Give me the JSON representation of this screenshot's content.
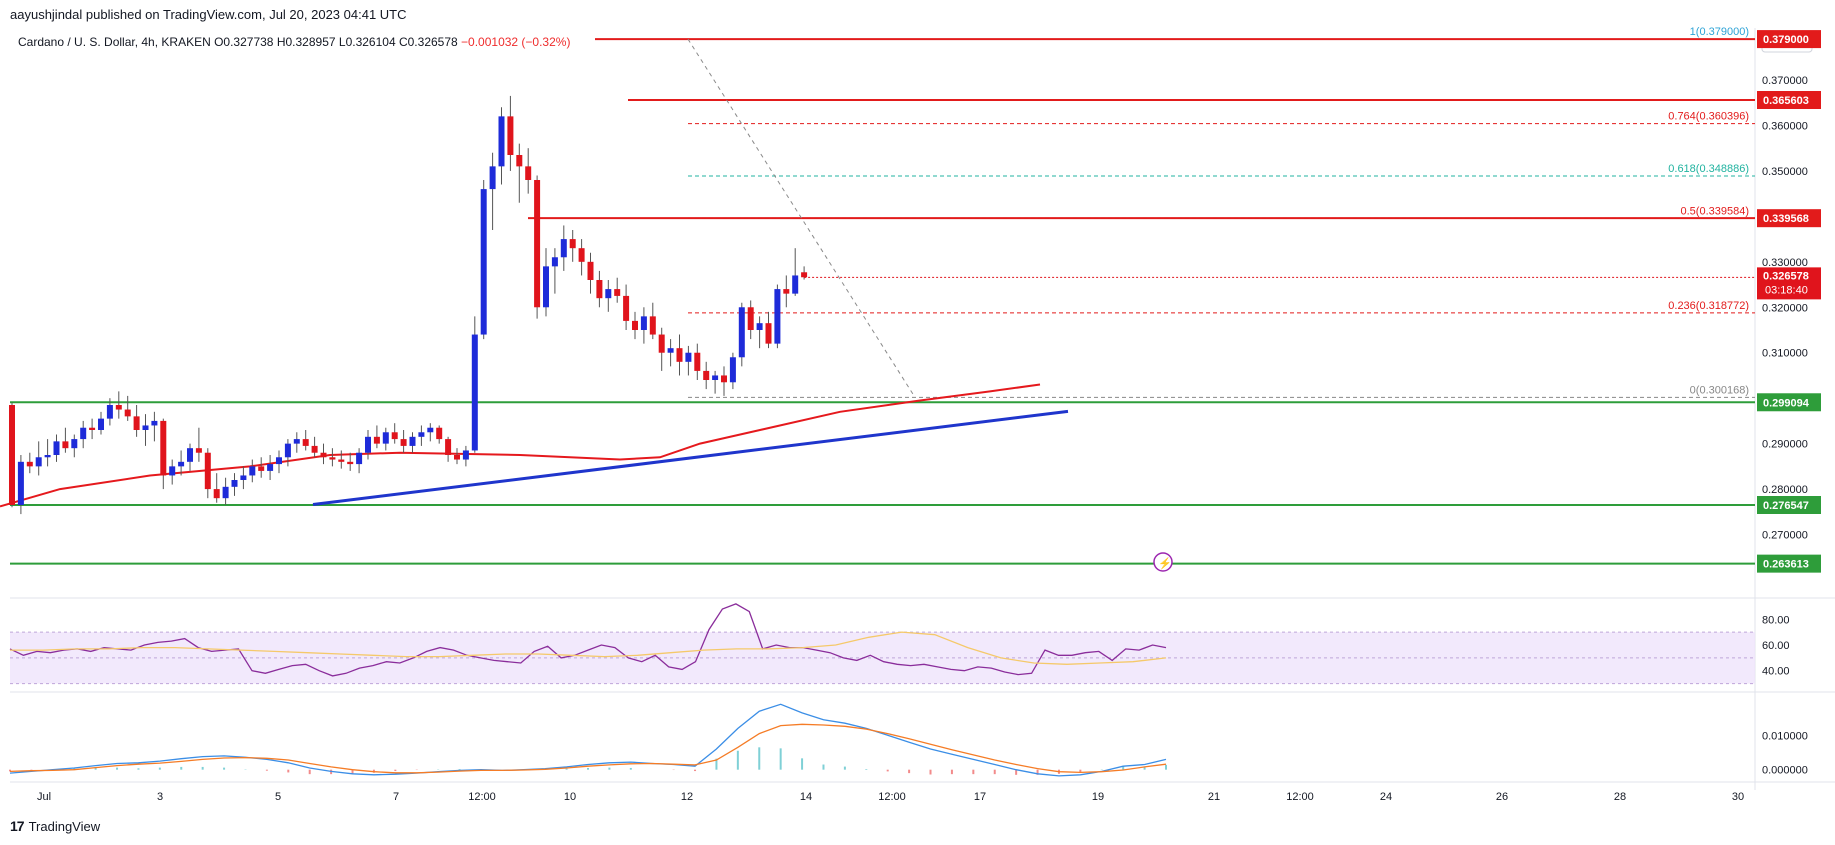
{
  "header": {
    "published": "aayushjindal published on TradingView.com, Jul 20, 2023 04:41 UTC",
    "symbol": "Cardano / U. S. Dollar, 4h, KRAKEN",
    "ohlc": {
      "open": "O0.327738",
      "high": "H0.328957",
      "low": "L0.326104",
      "close": "C0.326578",
      "change": "−0.001032 (−0.32%)"
    }
  },
  "footer": {
    "brand": "TradingView",
    "logo": "tradingview-logo-icon"
  },
  "colors": {
    "up": "#1e2bd9",
    "down": "#e0141c",
    "resistance": "#e21b1b",
    "support": "#2e9d3a",
    "trendline": "#1f35cc",
    "ma": "#e5191d",
    "rsi": "#8a2d9b",
    "rsi_ma": "#f5c96a",
    "macd": "#3b8ee6",
    "signal": "#f57c26",
    "fib_label": "#2da3d6"
  },
  "chart_data": [
    {
      "type": "candlestick",
      "title": "Cardano / U. S. Dollar, 4h, KRAKEN",
      "currency": "USD",
      "ylim": [
        0.26,
        0.381
      ],
      "price_ticks": [
        "0.370000",
        "0.360000",
        "0.350000",
        "0.340000",
        "0.330000",
        "0.320000",
        "0.310000",
        "0.300000",
        "0.290000",
        "0.280000",
        "0.270000"
      ],
      "x_ticks": [
        "Jul",
        "3",
        "5",
        "7",
        "12:00",
        "10",
        "12",
        "14",
        "12:00",
        "17",
        "19",
        "21",
        "12:00",
        "24",
        "26",
        "28",
        "30"
      ],
      "candles": [
        [
          0.2985,
          0.299,
          0.276,
          0.2765
        ],
        [
          0.2765,
          0.2875,
          0.2745,
          0.286
        ],
        [
          0.286,
          0.288,
          0.2835,
          0.285
        ],
        [
          0.285,
          0.2905,
          0.283,
          0.287
        ],
        [
          0.287,
          0.291,
          0.285,
          0.2875
        ],
        [
          0.2875,
          0.292,
          0.286,
          0.2905
        ],
        [
          0.2905,
          0.2935,
          0.288,
          0.289
        ],
        [
          0.289,
          0.292,
          0.287,
          0.291
        ],
        [
          0.291,
          0.295,
          0.289,
          0.2935
        ],
        [
          0.2935,
          0.2955,
          0.291,
          0.293
        ],
        [
          0.293,
          0.297,
          0.292,
          0.2955
        ],
        [
          0.2955,
          0.3,
          0.294,
          0.2985
        ],
        [
          0.2985,
          0.3015,
          0.2955,
          0.2975
        ],
        [
          0.2975,
          0.3005,
          0.295,
          0.296
        ],
        [
          0.296,
          0.2985,
          0.2915,
          0.293
        ],
        [
          0.293,
          0.2965,
          0.2895,
          0.294
        ],
        [
          0.294,
          0.297,
          0.2905,
          0.295
        ],
        [
          0.295,
          0.2955,
          0.28,
          0.283
        ],
        [
          0.283,
          0.2865,
          0.281,
          0.285
        ],
        [
          0.285,
          0.2885,
          0.283,
          0.286
        ],
        [
          0.286,
          0.29,
          0.284,
          0.289
        ],
        [
          0.289,
          0.2935,
          0.286,
          0.288
        ],
        [
          0.288,
          0.289,
          0.278,
          0.28
        ],
        [
          0.28,
          0.2835,
          0.277,
          0.278
        ],
        [
          0.278,
          0.2825,
          0.2765,
          0.2805
        ],
        [
          0.2805,
          0.2835,
          0.2785,
          0.282
        ],
        [
          0.282,
          0.285,
          0.28,
          0.283
        ],
        [
          0.283,
          0.2865,
          0.2815,
          0.285
        ],
        [
          0.285,
          0.287,
          0.2825,
          0.284
        ],
        [
          0.284,
          0.2875,
          0.282,
          0.2855
        ],
        [
          0.2855,
          0.2885,
          0.2835,
          0.287
        ],
        [
          0.287,
          0.291,
          0.285,
          0.29
        ],
        [
          0.29,
          0.2925,
          0.288,
          0.291
        ],
        [
          0.291,
          0.293,
          0.2885,
          0.2895
        ],
        [
          0.2895,
          0.2915,
          0.287,
          0.288
        ],
        [
          0.288,
          0.29,
          0.2855,
          0.287
        ],
        [
          0.287,
          0.289,
          0.285,
          0.2865
        ],
        [
          0.2865,
          0.2885,
          0.2845,
          0.286
        ],
        [
          0.286,
          0.288,
          0.284,
          0.2855
        ],
        [
          0.2855,
          0.289,
          0.2835,
          0.288
        ],
        [
          0.288,
          0.293,
          0.2865,
          0.2915
        ],
        [
          0.2915,
          0.294,
          0.289,
          0.29
        ],
        [
          0.29,
          0.2935,
          0.2885,
          0.2925
        ],
        [
          0.2925,
          0.2945,
          0.29,
          0.291
        ],
        [
          0.291,
          0.293,
          0.288,
          0.2895
        ],
        [
          0.2895,
          0.2925,
          0.288,
          0.2915
        ],
        [
          0.2915,
          0.294,
          0.2895,
          0.2925
        ],
        [
          0.2925,
          0.2945,
          0.2905,
          0.2935
        ],
        [
          0.2935,
          0.294,
          0.29,
          0.291
        ],
        [
          0.291,
          0.2915,
          0.286,
          0.2875
        ],
        [
          0.2875,
          0.289,
          0.2855,
          0.2865
        ],
        [
          0.2865,
          0.2895,
          0.285,
          0.2885
        ],
        [
          0.2885,
          0.318,
          0.288,
          0.314
        ],
        [
          0.314,
          0.348,
          0.313,
          0.346
        ],
        [
          0.346,
          0.354,
          0.337,
          0.351
        ],
        [
          0.351,
          0.364,
          0.347,
          0.362
        ],
        [
          0.362,
          0.3665,
          0.35,
          0.3535
        ],
        [
          0.3535,
          0.356,
          0.343,
          0.351
        ],
        [
          0.351,
          0.355,
          0.345,
          0.348
        ],
        [
          0.348,
          0.349,
          0.3175,
          0.32
        ],
        [
          0.32,
          0.333,
          0.318,
          0.329
        ],
        [
          0.329,
          0.333,
          0.323,
          0.331
        ],
        [
          0.331,
          0.338,
          0.328,
          0.335
        ],
        [
          0.335,
          0.337,
          0.33,
          0.333
        ],
        [
          0.333,
          0.335,
          0.327,
          0.33
        ],
        [
          0.33,
          0.332,
          0.323,
          0.326
        ],
        [
          0.326,
          0.328,
          0.32,
          0.322
        ],
        [
          0.322,
          0.326,
          0.319,
          0.324
        ],
        [
          0.324,
          0.3265,
          0.321,
          0.3225
        ],
        [
          0.3225,
          0.325,
          0.315,
          0.317
        ],
        [
          0.317,
          0.319,
          0.313,
          0.315
        ],
        [
          0.315,
          0.32,
          0.312,
          0.318
        ],
        [
          0.318,
          0.321,
          0.313,
          0.314
        ],
        [
          0.314,
          0.3155,
          0.306,
          0.31
        ],
        [
          0.31,
          0.313,
          0.307,
          0.311
        ],
        [
          0.311,
          0.314,
          0.305,
          0.308
        ],
        [
          0.308,
          0.3115,
          0.305,
          0.31
        ],
        [
          0.31,
          0.312,
          0.304,
          0.306
        ],
        [
          0.306,
          0.308,
          0.302,
          0.304
        ],
        [
          0.304,
          0.306,
          0.301,
          0.305
        ],
        [
          0.305,
          0.307,
          0.3005,
          0.3035
        ],
        [
          0.3035,
          0.31,
          0.302,
          0.309
        ],
        [
          0.309,
          0.321,
          0.307,
          0.32
        ],
        [
          0.32,
          0.3215,
          0.313,
          0.315
        ],
        [
          0.315,
          0.318,
          0.311,
          0.3165
        ],
        [
          0.3165,
          0.319,
          0.311,
          0.312
        ],
        [
          0.312,
          0.325,
          0.311,
          0.324
        ],
        [
          0.324,
          0.327,
          0.32,
          0.323
        ],
        [
          0.323,
          0.333,
          0.3225,
          0.327
        ],
        [
          0.3277,
          0.329,
          0.3261,
          0.3266
        ]
      ],
      "ma200": [
        [
          0,
          0.2762
        ],
        [
          60,
          0.28
        ],
        [
          150,
          0.283
        ],
        [
          250,
          0.285
        ],
        [
          330,
          0.2875
        ],
        [
          400,
          0.288
        ],
        [
          520,
          0.2875
        ],
        [
          620,
          0.2865
        ],
        [
          660,
          0.287
        ],
        [
          700,
          0.29
        ],
        [
          760,
          0.293
        ],
        [
          840,
          0.297
        ],
        [
          920,
          0.2995
        ],
        [
          990,
          0.3015
        ],
        [
          1040,
          0.303
        ]
      ],
      "horizontal_levels": [
        {
          "label": "0.379000",
          "value": 0.379,
          "kind": "resistance",
          "x_from": 595
        },
        {
          "label": "0.365603",
          "value": 0.3656,
          "kind": "resistance",
          "x_from": 628
        },
        {
          "label": "0.339568",
          "value": 0.3396,
          "kind": "resistance",
          "x_from": 528
        },
        {
          "label": "0.299094",
          "value": 0.2991,
          "kind": "support",
          "x_from": 10
        },
        {
          "label": "0.276547",
          "value": 0.2765,
          "kind": "support",
          "x_from": 10
        },
        {
          "label": "0.263613",
          "value": 0.2636,
          "kind": "support",
          "x_from": 10
        }
      ],
      "trendline": {
        "from": [
          313,
          0.2766
        ],
        "to": [
          1068,
          0.2971
        ]
      },
      "fib_diagonal": {
        "from": [
          688,
          0.379
        ],
        "to": [
          915,
          0.3002
        ]
      },
      "fibs": [
        {
          "label": "1(0.379000)",
          "value": 0.379,
          "color": "#2da3d6"
        },
        {
          "label": "0.764(0.360396)",
          "value": 0.360396,
          "color": "#e21b1b"
        },
        {
          "label": "0.618(0.348886)",
          "value": 0.348886,
          "color": "#21b3a0"
        },
        {
          "label": "0.5(0.339584)",
          "value": 0.339584,
          "color": "#e21b1b"
        },
        {
          "label": "0.236(0.318772)",
          "value": 0.318772,
          "color": "#e21b1b"
        },
        {
          "label": "0(0.300168)",
          "value": 0.300168,
          "color": "#888888"
        }
      ],
      "last_price": {
        "value": "0.326578",
        "countdown": "03:18:40"
      }
    },
    {
      "type": "line",
      "name": "RSI",
      "ylim": [
        25,
        95
      ],
      "ticks": [
        "80.00",
        "60.00",
        "40.00"
      ],
      "band": [
        30,
        70
      ],
      "rsi": [
        57,
        52,
        55,
        54,
        56,
        57,
        55,
        58,
        57,
        56,
        60,
        62,
        63,
        65,
        58,
        55,
        56,
        57,
        40,
        38,
        41,
        44,
        45,
        40,
        36,
        38,
        42,
        44,
        47,
        46,
        50,
        55,
        58,
        56,
        52,
        50,
        48,
        47,
        46,
        55,
        59,
        50,
        52,
        56,
        60,
        58,
        50,
        47,
        52,
        43,
        41,
        47,
        72,
        88,
        92,
        86,
        57,
        60,
        58,
        58,
        56,
        54,
        50,
        48,
        52,
        47,
        45,
        44,
        45,
        43,
        41,
        40,
        43,
        42,
        39,
        37,
        38,
        56,
        52,
        52,
        54,
        55,
        48,
        57,
        56,
        60,
        58
      ],
      "rsi_ma": [
        56,
        56,
        57,
        57,
        58,
        58,
        57,
        56,
        55,
        54,
        53,
        52,
        51,
        51,
        52,
        53,
        53,
        52,
        51,
        52,
        54,
        56,
        57,
        57,
        58,
        60,
        66,
        70,
        68,
        58,
        50,
        46,
        45,
        46,
        47,
        50
      ]
    },
    {
      "type": "line",
      "name": "MACD",
      "ylim": [
        -0.003,
        0.022
      ],
      "ticks": [
        "0.010000",
        "0.000000"
      ],
      "macd": [
        -0.001,
        -0.0005,
        0.0,
        0.0005,
        0.0012,
        0.0018,
        0.002,
        0.0025,
        0.0032,
        0.0038,
        0.004,
        0.0036,
        0.003,
        0.002,
        0.0005,
        -0.0005,
        -0.0012,
        -0.0015,
        -0.0013,
        -0.001,
        -0.0006,
        -0.0002,
        0.0,
        -0.0002,
        0.0,
        0.0003,
        0.0008,
        0.0015,
        0.002,
        0.0022,
        0.0018,
        0.0015,
        0.001,
        0.006,
        0.012,
        0.017,
        0.019,
        0.0165,
        0.0145,
        0.0135,
        0.012,
        0.01,
        0.008,
        0.006,
        0.0045,
        0.003,
        0.0015,
        0.0,
        -0.0012,
        -0.0018,
        -0.0015,
        -0.0005,
        0.001,
        0.0015,
        0.003
      ],
      "signal": [
        -0.0005,
        -0.0003,
        -0.0002,
        0.0,
        0.0006,
        0.0012,
        0.0016,
        0.0019,
        0.0024,
        0.003,
        0.0034,
        0.0035,
        0.0033,
        0.0028,
        0.0018,
        0.0008,
        0.0,
        -0.0006,
        -0.0009,
        -0.0009,
        -0.0007,
        -0.0004,
        -0.0002,
        -0.0002,
        -0.0001,
        0.0001,
        0.0005,
        0.001,
        0.0014,
        0.0017,
        0.0018,
        0.0016,
        0.0014,
        0.0028,
        0.0065,
        0.0105,
        0.0128,
        0.0132,
        0.013,
        0.0126,
        0.0118,
        0.0105,
        0.009,
        0.0074,
        0.0058,
        0.0043,
        0.0028,
        0.0015,
        0.0003,
        -0.0006,
        -0.0008,
        -0.0006,
        -0.0001,
        0.0008,
        0.0016
      ],
      "hist": [
        -0.0005,
        -0.0002,
        0.0002,
        0.0005,
        0.0006,
        0.0006,
        0.0004,
        0.0006,
        0.0008,
        0.0008,
        0.0006,
        0.0001,
        -0.0003,
        -0.0008,
        -0.0013,
        -0.0013,
        -0.0012,
        -0.0009,
        -0.0004,
        -0.0001,
        0.0001,
        0.0002,
        0.0002,
        0.0,
        0.0001,
        0.0002,
        0.0003,
        0.0005,
        0.0006,
        0.0005,
        0.0,
        -0.0001,
        -0.0004,
        0.0032,
        0.0055,
        0.0065,
        0.0062,
        0.0033,
        0.0015,
        0.0009,
        0.0002,
        -0.0005,
        -0.001,
        -0.0014,
        -0.0013,
        -0.0013,
        -0.0013,
        -0.0015,
        -0.0015,
        -0.0012,
        -0.0007,
        0.0001,
        0.0011,
        0.0007,
        0.0014
      ]
    }
  ]
}
